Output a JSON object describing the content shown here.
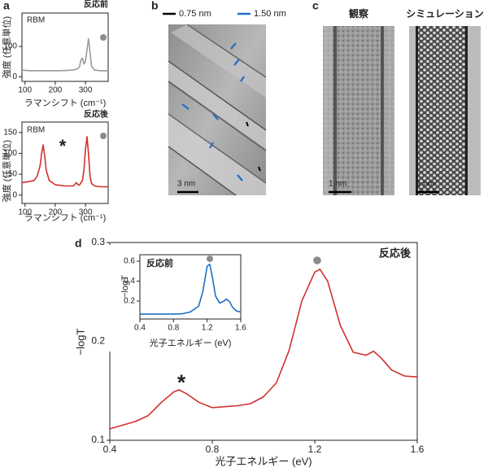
{
  "panel_labels": [
    "a",
    "b",
    "c",
    "d"
  ],
  "chart_data": [
    {
      "type": "line",
      "title": "反応前",
      "label": "RBM",
      "xlabel": "ラマンシフト (cm⁻¹)",
      "ylabel": "強度 (任意単位)",
      "x": [
        90,
        120,
        150,
        180,
        210,
        240,
        260,
        270,
        280,
        285,
        290,
        295,
        300,
        305,
        310,
        315,
        320,
        330,
        350,
        375
      ],
      "values": [
        22,
        20,
        20,
        20,
        20,
        21,
        23,
        25,
        32,
        55,
        62,
        42,
        50,
        90,
        125,
        80,
        35,
        22,
        20,
        20
      ],
      "color": "#9a9a9a",
      "xlim": [
        90,
        375
      ],
      "ylim": [
        -15,
        210
      ],
      "xticks": [
        100,
        200,
        300
      ],
      "yticks": [
        0,
        100
      ]
    },
    {
      "type": "line",
      "title": "反応後",
      "label": "RBM",
      "annotation": "*",
      "xlabel": "ラマンシフト (cm⁻¹)",
      "ylabel": "強度 (任意単位)",
      "x": [
        90,
        110,
        130,
        140,
        150,
        155,
        160,
        165,
        170,
        180,
        200,
        230,
        260,
        270,
        275,
        280,
        290,
        295,
        300,
        305,
        310,
        315,
        320,
        330,
        350,
        375
      ],
      "values": [
        30,
        32,
        35,
        45,
        70,
        100,
        120,
        95,
        60,
        35,
        25,
        22,
        22,
        30,
        25,
        24,
        35,
        60,
        110,
        140,
        100,
        45,
        28,
        22,
        20,
        20
      ],
      "color": "#d0312d",
      "xlim": [
        90,
        375
      ],
      "ylim": [
        -20,
        175
      ],
      "xticks": [
        100,
        200,
        300
      ],
      "yticks": [
        0,
        50,
        100,
        150
      ]
    },
    {
      "type": "line",
      "title": "反応後",
      "annotation": "*",
      "xlabel": "光子エネルギー (eV)",
      "ylabel": "−logT",
      "x": [
        0.4,
        0.5,
        0.55,
        0.6,
        0.65,
        0.67,
        0.7,
        0.75,
        0.8,
        0.85,
        0.9,
        0.95,
        1.0,
        1.05,
        1.1,
        1.15,
        1.2,
        1.22,
        1.25,
        1.3,
        1.35,
        1.4,
        1.43,
        1.46,
        1.5,
        1.55,
        1.6
      ],
      "values": [
        0.1115,
        0.119,
        0.125,
        0.138,
        0.149,
        0.151,
        0.147,
        0.138,
        0.133,
        0.134,
        0.135,
        0.137,
        0.144,
        0.158,
        0.191,
        0.241,
        0.27,
        0.273,
        0.261,
        0.216,
        0.189,
        0.186,
        0.19,
        0.183,
        0.171,
        0.165,
        0.164
      ],
      "color": "#d0312d",
      "xlim": [
        0.4,
        1.6
      ],
      "ylim": [
        0.1,
        0.3
      ],
      "xticks": [
        0.4,
        0.8,
        1.2,
        1.6
      ],
      "yticks": [
        0.1,
        0.2,
        0.3
      ]
    },
    {
      "type": "line",
      "title": "反応前",
      "xlabel": "光子エネルギー (eV)",
      "ylabel": "−logT",
      "x": [
        0.4,
        0.6,
        0.8,
        0.9,
        1.0,
        1.1,
        1.15,
        1.2,
        1.23,
        1.26,
        1.3,
        1.35,
        1.4,
        1.43,
        1.47,
        1.5,
        1.55,
        1.6
      ],
      "values": [
        0.07,
        0.07,
        0.07,
        0.072,
        0.09,
        0.15,
        0.3,
        0.55,
        0.57,
        0.45,
        0.25,
        0.18,
        0.2,
        0.22,
        0.19,
        0.14,
        0.1,
        0.09
      ],
      "color": "#1f6fc5",
      "xlim": [
        0.4,
        1.6
      ],
      "ylim": [
        0.02,
        0.665
      ],
      "xticks": [
        0.4,
        0.8,
        1.2,
        1.6
      ],
      "yticks": [
        0.2,
        0.4,
        0.6
      ]
    }
  ],
  "panel_b": {
    "legend": [
      {
        "label": "0.75 nm",
        "color": "#000000"
      },
      {
        "label": "1.50 nm",
        "color": "#1f6fc5"
      }
    ],
    "scale_bar": "3 nm"
  },
  "panel_c": {
    "titles": [
      "観察",
      "シミュレーション"
    ],
    "scale_bars": [
      "1 nm",
      "1 nm"
    ]
  }
}
